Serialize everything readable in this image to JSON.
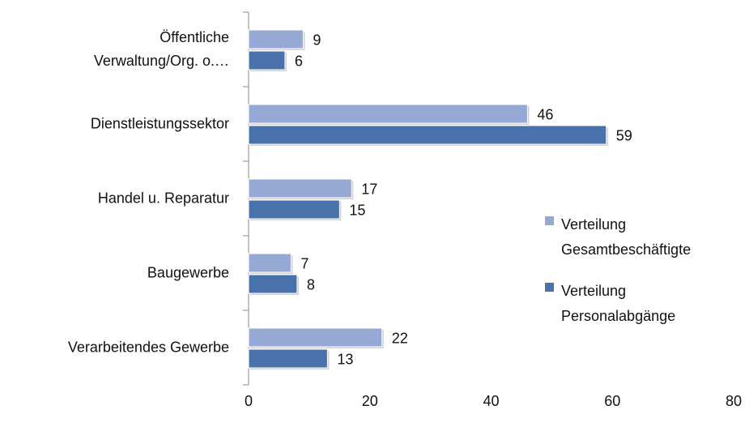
{
  "chart_data": {
    "type": "bar",
    "orientation": "horizontal",
    "categories": [
      "Öffentliche Verwaltung/Org. o.…",
      "Dienstleistungssektor",
      "Handel u. Reparatur",
      "Baugewerbe",
      "Verarbeitendes Gewerbe"
    ],
    "series": [
      {
        "name": "Verteilung Gesamtbeschäftigte",
        "color": "#95a9d4",
        "values": [
          9,
          46,
          17,
          7,
          22
        ]
      },
      {
        "name": "Verteilung Personalabgänge",
        "color": "#4a72aa",
        "values": [
          6,
          59,
          15,
          8,
          13
        ]
      }
    ],
    "xlim": [
      0,
      80
    ],
    "xticks": [
      0,
      20,
      40,
      60,
      80
    ],
    "grid": false,
    "legend": "right"
  }
}
